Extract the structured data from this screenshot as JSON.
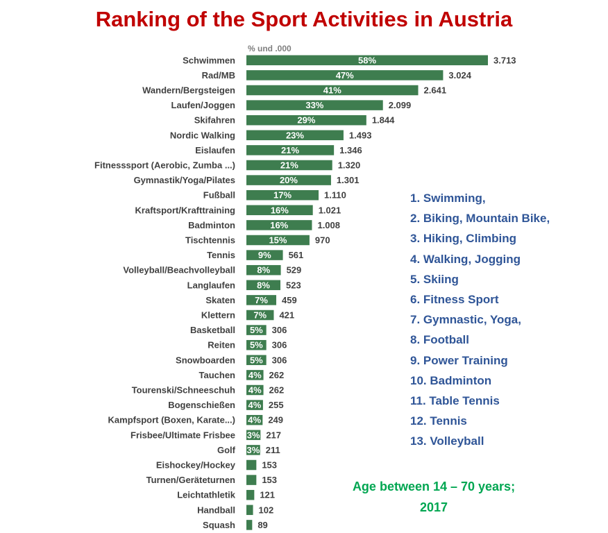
{
  "chart_data": {
    "type": "bar",
    "orientation": "horizontal",
    "title": "Ranking of the Sport Activities in Austria",
    "unit_label": "% und .000",
    "categories": [
      "Schwimmen",
      "Rad/MB",
      "Wandern/Bergsteigen",
      "Laufen/Joggen",
      "Skifahren",
      "Nordic Walking",
      "Eislaufen",
      "Fitnesssport (Aerobic, Zumba ...)",
      "Gymnastik/Yoga/Pilates",
      "Fußball",
      "Kraftsport/Krafttraining",
      "Badminton",
      "Tischtennis",
      "Tennis",
      "Volleyball/Beachvolleyball",
      "Langlaufen",
      "Skaten",
      "Klettern",
      "Basketball",
      "Reiten",
      "Snowboarden",
      "Tauchen",
      "Tourenski/Schneeschuh",
      "Bogenschießen",
      "Kampfsport (Boxen, Karate...)",
      "Frisbee/Ultimate Frisbee",
      "Golf",
      "Eishockey/Hockey",
      "Turnen/Geräteturnen",
      "Leichtathletik",
      "Handball",
      "Squash"
    ],
    "values": [
      3713,
      3024,
      2641,
      2099,
      1844,
      1493,
      1346,
      1320,
      1301,
      1110,
      1021,
      1008,
      970,
      561,
      529,
      523,
      459,
      421,
      306,
      306,
      306,
      262,
      262,
      255,
      249,
      217,
      211,
      153,
      153,
      121,
      102,
      89
    ],
    "value_labels": [
      "3.713",
      "3.024",
      "2.641",
      "2.099",
      "1.844",
      "1.493",
      "1.346",
      "1.320",
      "1.301",
      "1.110",
      "1.021",
      "1.008",
      "970",
      "561",
      "529",
      "523",
      "459",
      "421",
      "306",
      "306",
      "306",
      "262",
      "262",
      "255",
      "249",
      "217",
      "211",
      "153",
      "153",
      "121",
      "102",
      "89"
    ],
    "percent_labels": [
      "58%",
      "47%",
      "41%",
      "33%",
      "29%",
      "23%",
      "21%",
      "21%",
      "20%",
      "17%",
      "16%",
      "16%",
      "15%",
      "9%",
      "8%",
      "8%",
      "7%",
      "7%",
      "5%",
      "5%",
      "5%",
      "4%",
      "4%",
      "4%",
      "4%",
      "3%",
      "3%",
      "",
      "",
      "",
      "",
      ""
    ],
    "bar_color": "#3e7d4f",
    "grid": false,
    "legend": "none"
  },
  "annotations": {
    "translations": [
      "1. Swimming,",
      "2. Biking, Mountain Bike,",
      "3. Hiking, Climbing",
      "4. Walking, Jogging",
      "5. Skiing",
      "6. Fitness Sport",
      "7. Gymnastic, Yoga,",
      "8. Football",
      "9. Power Training",
      "10. Badminton",
      "11. Table Tennis",
      "12. Tennis",
      "13. Volleyball"
    ],
    "age_note_line1": "Age between 14 – 70 years;",
    "age_note_line2": "2017"
  },
  "colors": {
    "title": "#c00000",
    "translations": "#2f5597",
    "age_note": "#00a651"
  }
}
